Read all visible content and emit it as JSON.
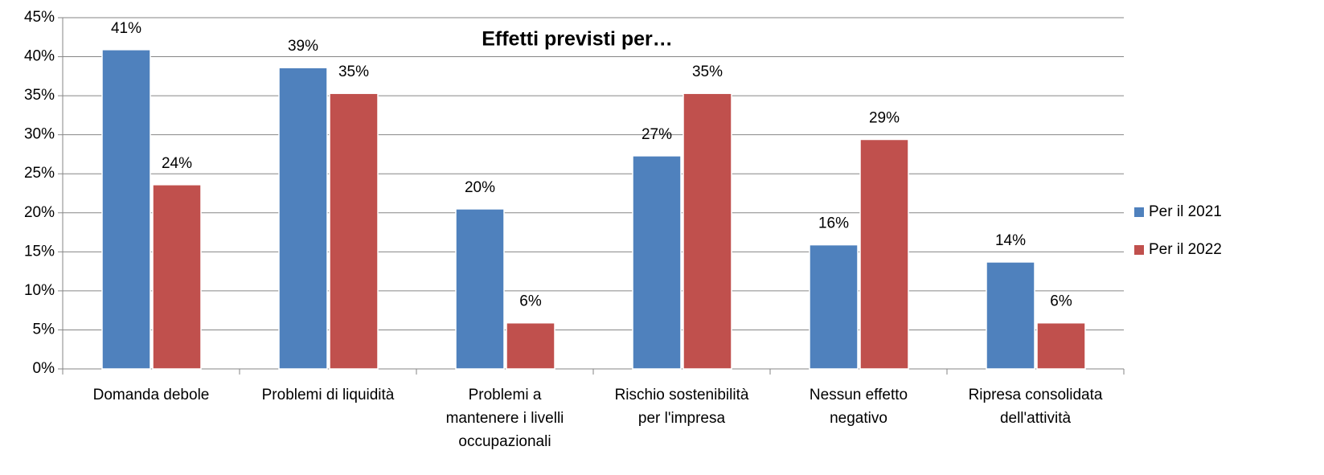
{
  "chart_data": {
    "type": "bar",
    "title": "Effetti previsti per…",
    "categories": [
      "Domanda debole",
      "Problemi di liquidità",
      "Problemi a\nmantenere i livelli\noccupazionali",
      "Rischio sostenibilità\nper l'impresa",
      "Nessun effetto\nnegativo",
      "Ripresa consolidata\ndell'attività"
    ],
    "series": [
      {
        "name": "Per il 2021",
        "color": "#4f81bd",
        "values": [
          40.9,
          38.6,
          20.5,
          27.3,
          15.9,
          13.7
        ],
        "value_labels": [
          "41%",
          "39%",
          "20%",
          "27%",
          "16%",
          "14%"
        ]
      },
      {
        "name": "Per il 2022",
        "color": "#c0504d",
        "values": [
          23.6,
          35.3,
          5.9,
          35.3,
          29.4,
          5.9
        ],
        "value_labels": [
          "24%",
          "35%",
          "6%",
          "35%",
          "29%",
          "6%"
        ]
      }
    ],
    "ylim": [
      0,
      45
    ],
    "yticks": [
      {
        "value": 0,
        "label": "0%"
      },
      {
        "value": 5,
        "label": "5%"
      },
      {
        "value": 10,
        "label": "10%"
      },
      {
        "value": 15,
        "label": "15%"
      },
      {
        "value": 20,
        "label": "20%"
      },
      {
        "value": 25,
        "label": "25%"
      },
      {
        "value": 30,
        "label": "30%"
      },
      {
        "value": 35,
        "label": "35%"
      },
      {
        "value": 40,
        "label": "40%"
      },
      {
        "value": 45,
        "label": "45%"
      }
    ],
    "grid": true,
    "legend": "right"
  }
}
